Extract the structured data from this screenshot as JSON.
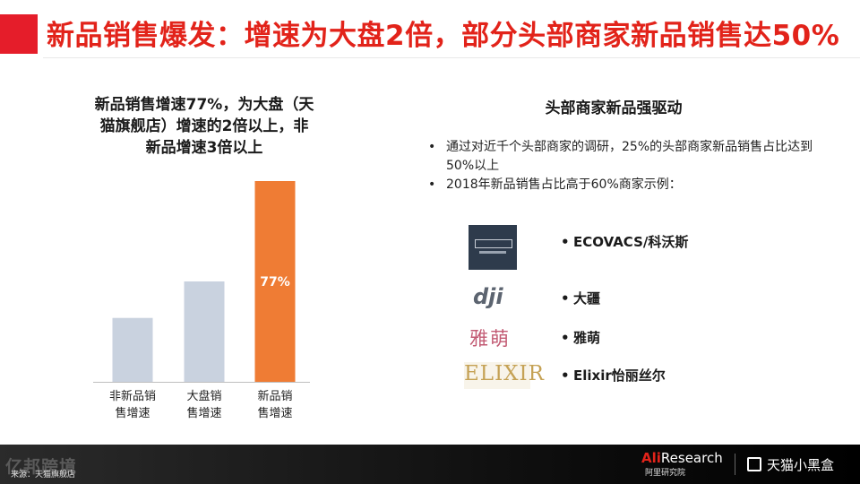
{
  "header": {
    "title": "新品销售爆发：增速为大盘2倍，部分头部商家新品销售达50%"
  },
  "left": {
    "title_lines": [
      "新品销售增速77%，为大盘（天",
      "猫旗舰店）增速的2倍以上，非",
      "新品增速3倍以上"
    ]
  },
  "chart_data": {
    "type": "bar",
    "categories": [
      "非新品销售增速",
      "大盘销售增速",
      "新品销售增速"
    ],
    "category_label_lines": [
      [
        "非新品销",
        "售增速"
      ],
      [
        "大盘销",
        "售增速"
      ],
      [
        "新品销",
        "售增速"
      ]
    ],
    "values": [
      24.5,
      38.5,
      77
    ],
    "data_labels": [
      "",
      "",
      "77%"
    ],
    "ylim": [
      0,
      80
    ],
    "colors": [
      "#c9d2df",
      "#c9d2df",
      "#ef7c34"
    ],
    "grid": false,
    "legend": "none"
  },
  "right": {
    "title": "头部商家新品强驱动",
    "bullets": [
      "通过对近千个头部商家的调研，25%的头部商家新品销售占比达到50%以上",
      "2018年新品销售占比高于60%商家示例："
    ],
    "brands": [
      {
        "name": "ECOVACS/科沃斯",
        "logo_icon": "ecovacs-logo-icon"
      },
      {
        "name": "大疆",
        "logo_icon": "dji-logo-icon",
        "logo_text": "dji"
      },
      {
        "name": "雅萌",
        "logo_icon": "yameng-logo-icon",
        "logo_text": "雅萌"
      },
      {
        "name": "Elixir怡丽丝尔",
        "logo_icon": "elixir-logo-icon",
        "logo_text": "ELIXIR"
      }
    ]
  },
  "footer": {
    "watermark": "亿邦跨境",
    "source": "来源：天猫旗舰店",
    "ali_research": {
      "prefix": "Ali",
      "name": "Research",
      "sub": "阿里研究院"
    },
    "tmall": "天猫小黑盒"
  }
}
